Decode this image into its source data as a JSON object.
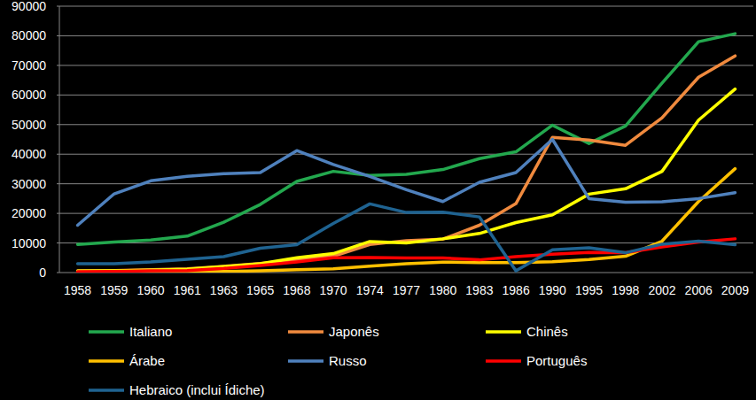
{
  "chart_data": {
    "type": "line",
    "categories": [
      "1958",
      "1959",
      "1960",
      "1961",
      "1963",
      "1965",
      "1968",
      "1970",
      "1974",
      "1977",
      "1980",
      "1983",
      "1986",
      "1990",
      "1995",
      "1998",
      "2002",
      "2006",
      "2009"
    ],
    "series": [
      {
        "name": "Italiano",
        "color": "#23a84e",
        "values": [
          9500,
          10300,
          11000,
          12300,
          17000,
          23000,
          30800,
          34200,
          32800,
          33200,
          34800,
          38500,
          40800,
          49800,
          43600,
          49500,
          64000,
          78000,
          80700
        ]
      },
      {
        "name": "Japonês",
        "color": "#f08a3e",
        "values": [
          600,
          700,
          1000,
          1300,
          2100,
          3100,
          4300,
          5500,
          9500,
          10800,
          11300,
          16000,
          23300,
          45700,
          44800,
          43000,
          52300,
          66000,
          73200
        ]
      },
      {
        "name": "Chinês",
        "color": "#ffff00",
        "values": [
          500,
          600,
          800,
          1100,
          2000,
          3000,
          5000,
          6400,
          10500,
          10000,
          11400,
          13200,
          16900,
          19500,
          26500,
          28300,
          34200,
          51500,
          62000
        ]
      },
      {
        "name": "Árabe",
        "color": "#ffc000",
        "values": [
          100,
          100,
          200,
          200,
          400,
          600,
          1000,
          1300,
          2200,
          3000,
          3500,
          3400,
          3400,
          3700,
          4400,
          5500,
          10600,
          24000,
          35100
        ]
      },
      {
        "name": "Russo",
        "color": "#4f81bd",
        "values": [
          16000,
          26600,
          31000,
          32500,
          33400,
          33800,
          41200,
          36500,
          32500,
          28000,
          24000,
          30500,
          33800,
          45000,
          25000,
          23800,
          23900,
          25000,
          27000
        ]
      },
      {
        "name": "Português",
        "color": "#ff0000",
        "values": [
          300,
          400,
          600,
          700,
          1400,
          2400,
          3600,
          5000,
          5100,
          4900,
          4900,
          4300,
          5400,
          6200,
          6800,
          6700,
          8700,
          10300,
          11400
        ]
      },
      {
        "name": "Hebraico (inclui Ídiche)",
        "color": "#1f6391",
        "values": [
          3000,
          3000,
          3600,
          4500,
          5400,
          8200,
          9400,
          16600,
          23200,
          20300,
          20400,
          18800,
          600,
          7700,
          8400,
          6700,
          9600,
          10600,
          9400
        ]
      }
    ],
    "ylim": [
      0,
      90000
    ],
    "yticks": [
      0,
      10000,
      20000,
      30000,
      40000,
      50000,
      60000,
      70000,
      80000,
      90000
    ],
    "grid": true,
    "legend": "bottom"
  }
}
